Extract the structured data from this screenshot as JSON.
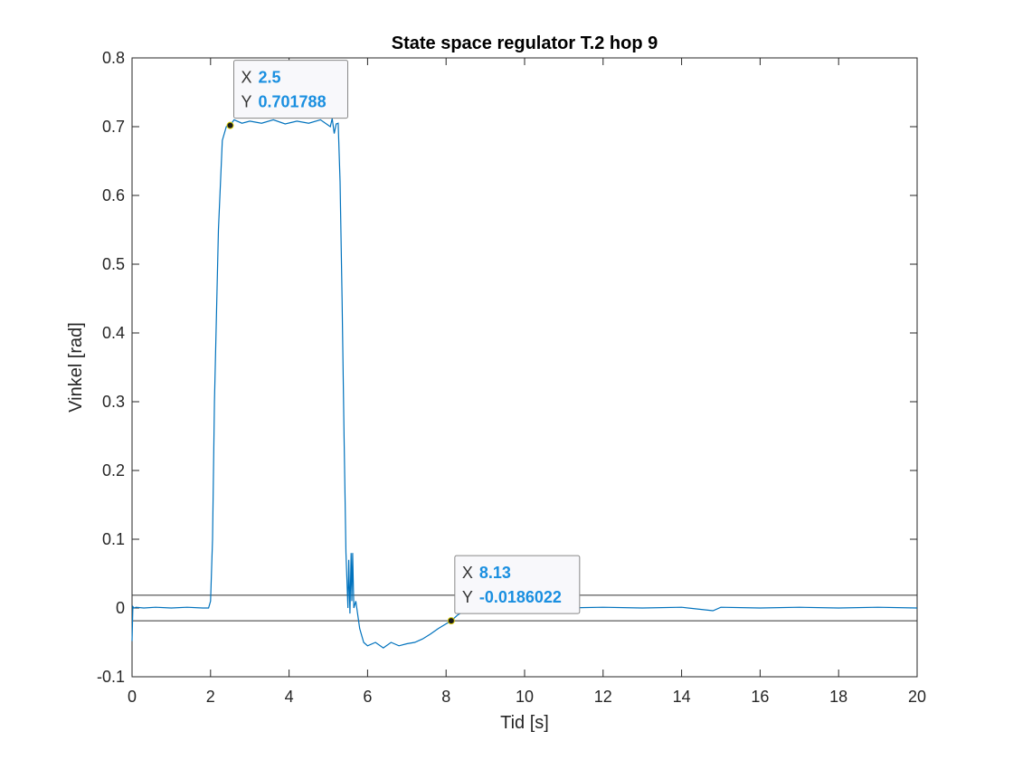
{
  "chart_data": {
    "type": "line",
    "title": "State space regulator T.2 hop 9",
    "xlabel": "Tid [s]",
    "ylabel": "Vinkel [rad]",
    "xlim": [
      0,
      20
    ],
    "ylim": [
      -0.1,
      0.8
    ],
    "xticks": [
      "0",
      "2",
      "4",
      "6",
      "8",
      "10",
      "12",
      "14",
      "16",
      "18",
      "20"
    ],
    "yticks": [
      "-0.1",
      "0",
      "0.1",
      "0.2",
      "0.3",
      "0.4",
      "0.5",
      "0.6",
      "0.7",
      "0.8"
    ],
    "grid": false,
    "line_color": "#0072bd",
    "x": [
      0,
      0.02,
      0.05,
      0.1,
      0.3,
      0.6,
      1.0,
      1.4,
      1.8,
      1.95,
      2.0,
      2.05,
      2.1,
      2.2,
      2.3,
      2.4,
      2.5,
      2.6,
      2.8,
      3.0,
      3.3,
      3.6,
      3.9,
      4.2,
      4.5,
      4.8,
      5.05,
      5.1,
      5.15,
      5.2,
      5.25,
      5.3,
      5.35,
      5.4,
      5.45,
      5.5,
      5.52,
      5.55,
      5.58,
      5.6,
      5.62,
      5.65,
      5.7,
      5.8,
      5.9,
      6.0,
      6.2,
      6.4,
      6.6,
      6.8,
      7.0,
      7.2,
      7.4,
      7.6,
      7.8,
      8.0,
      8.13,
      8.3,
      8.5,
      8.8,
      9.0,
      9.5,
      10,
      11,
      12,
      13,
      14,
      14.8,
      15,
      16,
      17,
      18,
      19,
      20
    ],
    "y": [
      -0.048,
      0.002,
      0.0,
      0.001,
      0.0,
      0.001,
      0.0,
      0.001,
      0.0,
      0.0,
      0.01,
      0.1,
      0.3,
      0.55,
      0.68,
      0.7,
      0.701788,
      0.71,
      0.705,
      0.708,
      0.705,
      0.71,
      0.704,
      0.708,
      0.705,
      0.71,
      0.7,
      0.712,
      0.69,
      0.704,
      0.705,
      0.62,
      0.45,
      0.25,
      0.08,
      0.0,
      0.07,
      -0.008,
      0.08,
      0.01,
      0.08,
      0.0,
      0.01,
      -0.03,
      -0.05,
      -0.055,
      -0.05,
      -0.058,
      -0.05,
      -0.055,
      -0.052,
      -0.05,
      -0.045,
      -0.038,
      -0.03,
      -0.023,
      -0.0186022,
      -0.01,
      -0.003,
      0.0,
      0.001,
      0.0,
      0.001,
      0.0,
      0.001,
      0.0,
      0.001,
      -0.004,
      0.001,
      0.0,
      0.001,
      0.0,
      0.001,
      0.0
    ],
    "reference_lines": [
      0.0186,
      -0.0186
    ],
    "datatips": [
      {
        "x_label": "X",
        "x_value": "2.5",
        "y_label": "Y",
        "y_value": "0.701788",
        "x": 2.5,
        "y": 0.701788
      },
      {
        "x_label": "X",
        "x_value": "8.13",
        "y_label": "Y",
        "y_value": "-0.0186022",
        "x": 8.13,
        "y": -0.0186022
      }
    ]
  }
}
